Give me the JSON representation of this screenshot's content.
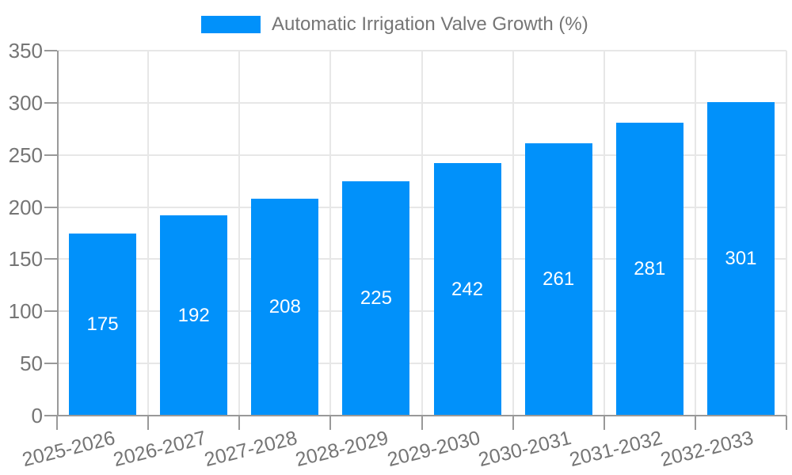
{
  "legend": {
    "label": "Automatic Irrigation Valve Growth (%)"
  },
  "colors": {
    "bar": "#0191fa",
    "axis": "#999999",
    "grid": "#e7e7e7",
    "text": "#757575",
    "value_label": "#ffffff",
    "background": "#ffffff"
  },
  "chart_data": {
    "type": "bar",
    "title": "Automatic Irrigation Valve Growth (%)",
    "categories": [
      "2025-2026",
      "2026-2027",
      "2027-2028",
      "2028-2029",
      "2029-2030",
      "2030-2031",
      "2031-2032",
      "2032-2033"
    ],
    "values": [
      175,
      192,
      208,
      225,
      242,
      261,
      281,
      301
    ],
    "xlabel": "",
    "ylabel": "",
    "ylim": [
      0,
      350
    ],
    "yticks": [
      0,
      50,
      100,
      150,
      200,
      250,
      300,
      350
    ],
    "grid": true,
    "legend_position": "top",
    "value_labels": "inside-center"
  }
}
